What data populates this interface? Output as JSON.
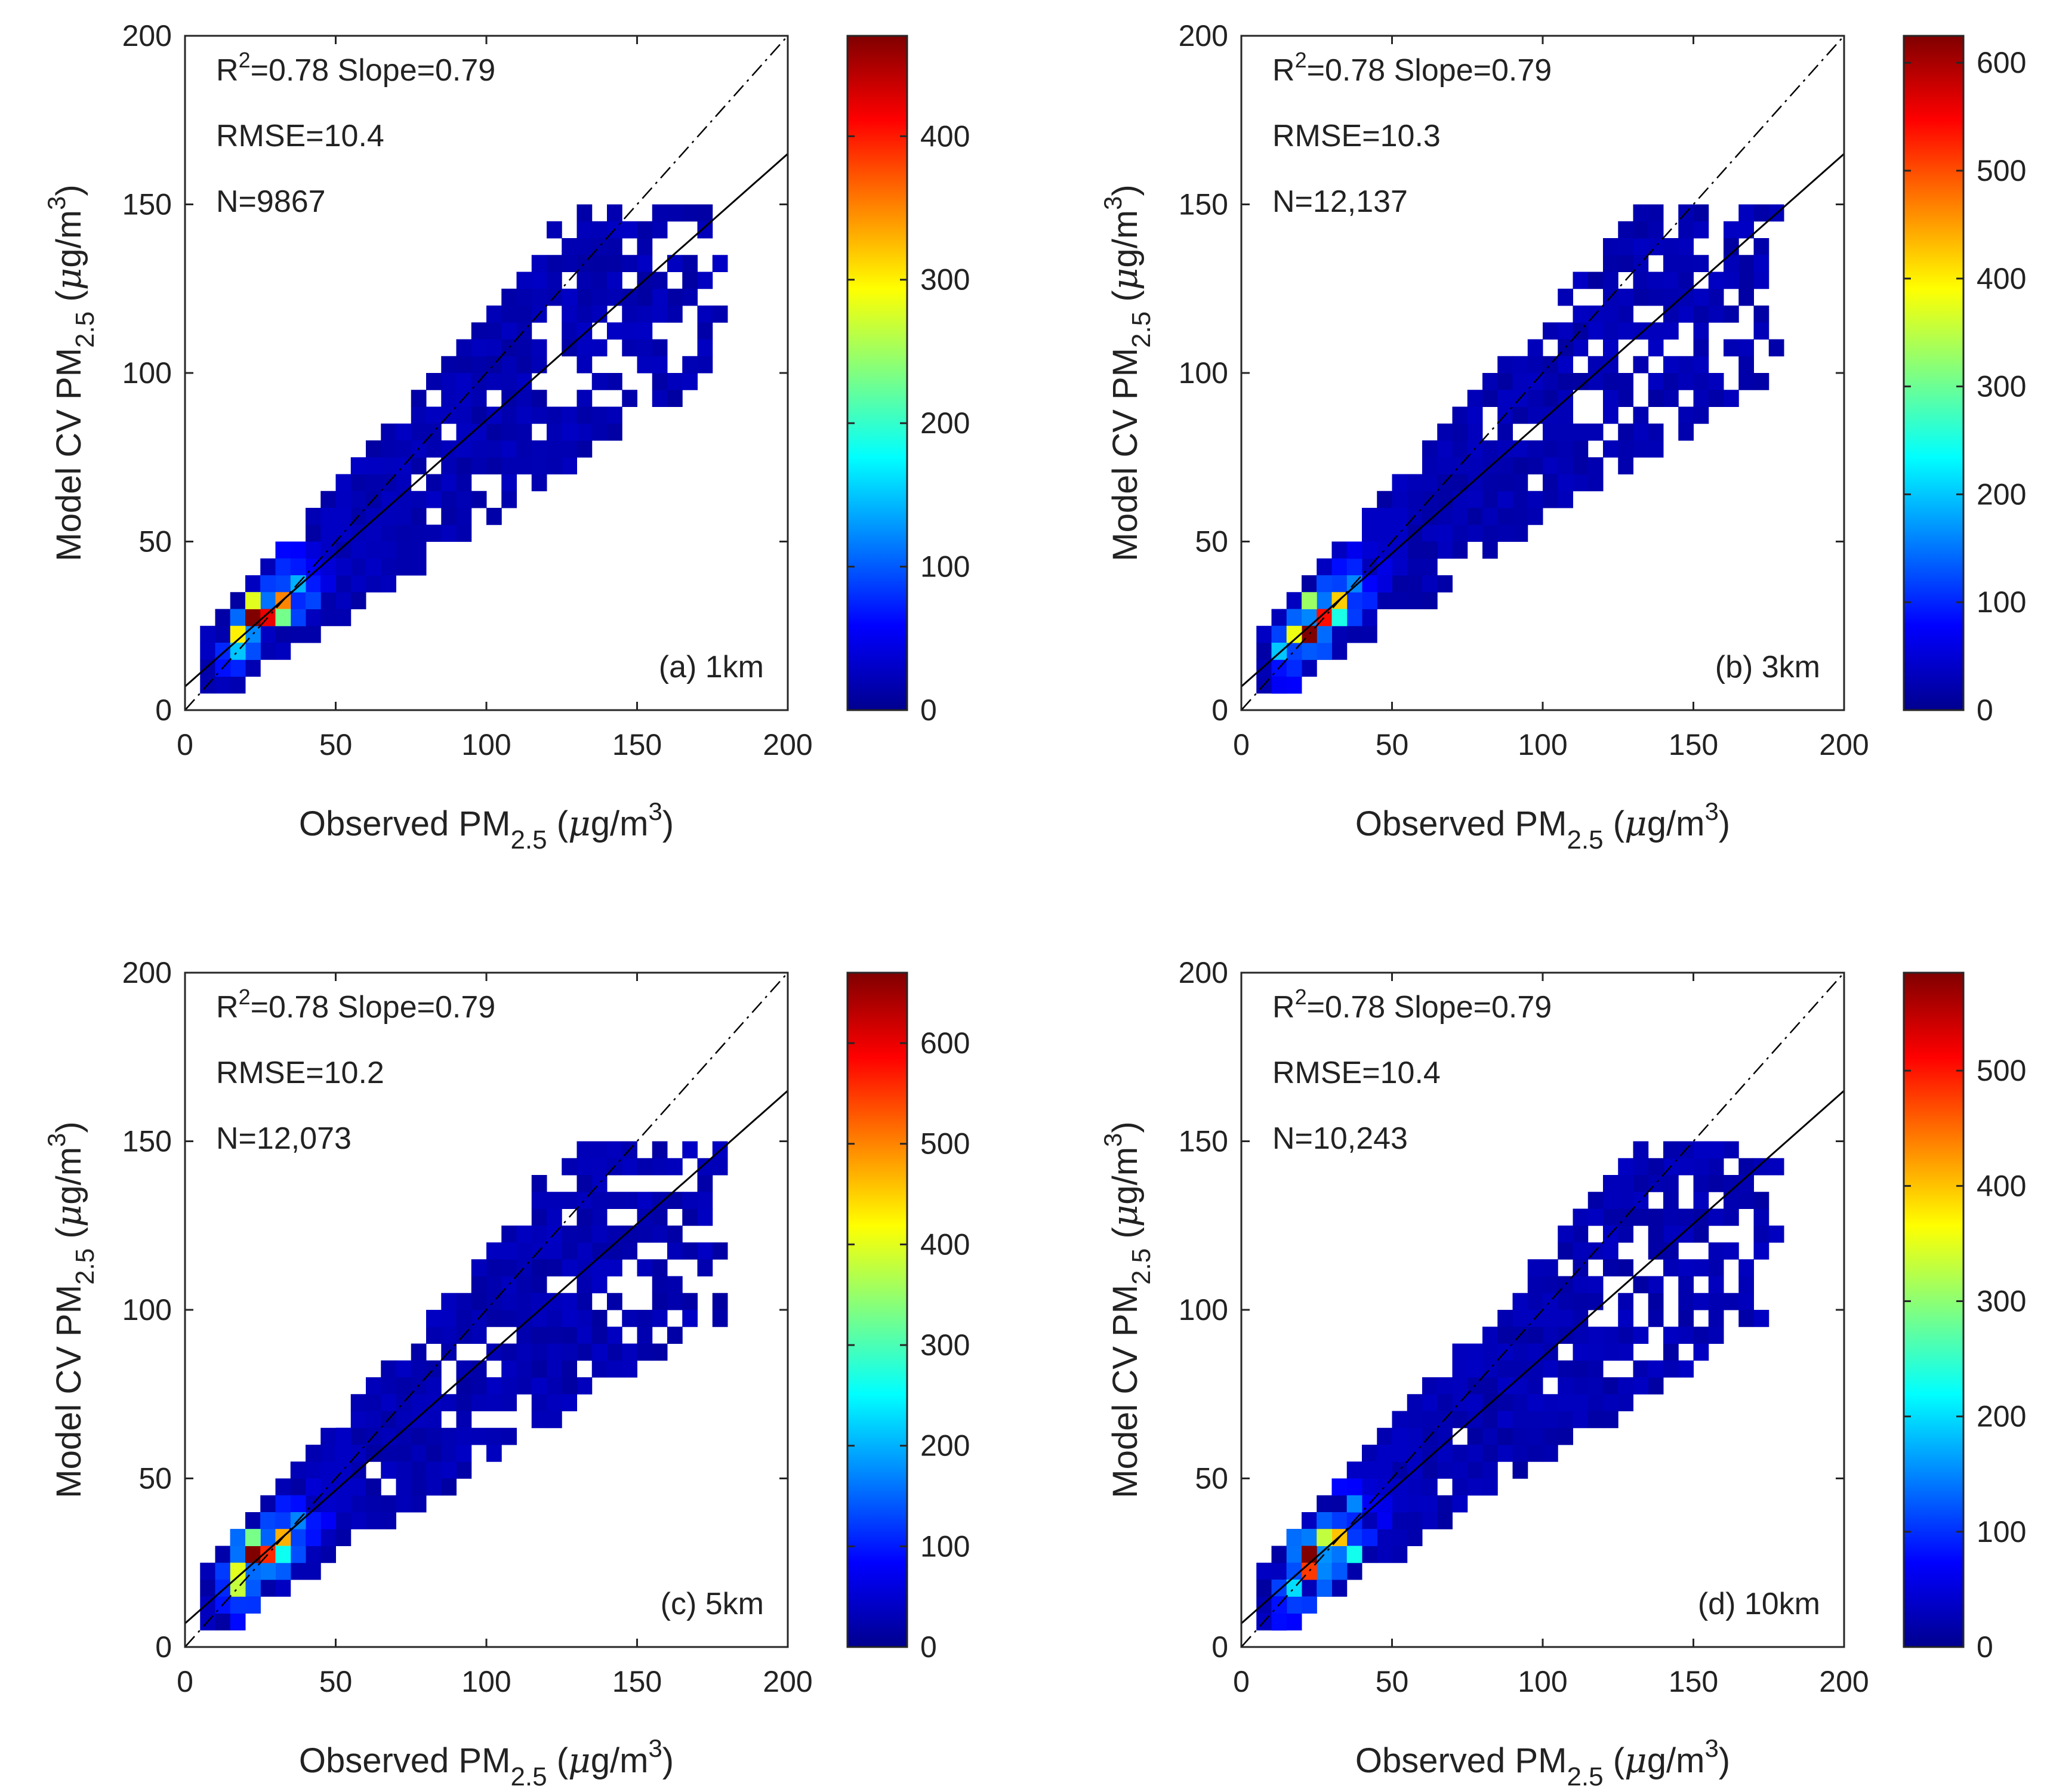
{
  "figure": {
    "x_axis_label": {
      "main": "Observed PM",
      "sub": "2.5",
      "units_open": " (",
      "mu": "μ",
      "units": "g/m",
      "sup": "3",
      "units_close": ")"
    },
    "y_axis_label": {
      "main": "Model CV PM",
      "sub": "2.5",
      "units_open": " (",
      "mu": "μ",
      "units": "g/m",
      "sup": "3",
      "units_close": ")"
    },
    "r2_prefix": "R",
    "r2_sup": "2"
  },
  "colormap": [
    "#00008f",
    "#0000ff",
    "#0080ff",
    "#00ffff",
    "#80ff80",
    "#ffff00",
    "#ff8000",
    "#ff0000",
    "#800000"
  ],
  "chart_data": [
    {
      "type": "heatmap",
      "panel_label": "(a) 1km",
      "r2": "=0.78",
      "slope_text": "Slope=0.79",
      "rmse_text": "RMSE=10.4",
      "n_text": "N=9867",
      "xlim": [
        0,
        200
      ],
      "ylim": [
        0,
        200
      ],
      "x_ticks": [
        "0",
        "50",
        "100",
        "150",
        "200"
      ],
      "y_ticks": [
        "0",
        "50",
        "100",
        "150",
        "200"
      ],
      "colorbar_max": 470,
      "colorbar_ticks": [
        "0",
        "100",
        "200",
        "300",
        "400"
      ],
      "colorbar_tick_values": [
        0,
        100,
        200,
        300,
        400
      ],
      "one_to_one_line": true,
      "fit_line": {
        "slope": 0.79,
        "intercept": 7,
        "x_range": [
          0,
          200
        ]
      },
      "hot_cells": [
        {
          "x": 22,
          "y": 26,
          "value": 470
        },
        {
          "x": 27,
          "y": 28,
          "value": 420
        },
        {
          "x": 30,
          "y": 32,
          "value": 350
        },
        {
          "x": 18,
          "y": 22,
          "value": 300
        },
        {
          "x": 24,
          "y": 32,
          "value": 280
        },
        {
          "x": 33,
          "y": 28,
          "value": 230
        },
        {
          "x": 15,
          "y": 18,
          "value": 150
        },
        {
          "x": 35,
          "y": 38,
          "value": 140
        },
        {
          "x": 40,
          "y": 32,
          "value": 90
        }
      ]
    },
    {
      "type": "heatmap",
      "panel_label": "(b) 3km",
      "r2": "=0.78",
      "slope_text": "Slope=0.79",
      "rmse_text": "RMSE=10.3",
      "n_text": "N=12,137",
      "xlim": [
        0,
        200
      ],
      "ylim": [
        0,
        200
      ],
      "x_ticks": [
        "0",
        "50",
        "100",
        "150",
        "200"
      ],
      "y_ticks": [
        "0",
        "50",
        "100",
        "150",
        "200"
      ],
      "colorbar_max": 625,
      "colorbar_ticks": [
        "0",
        "100",
        "200",
        "300",
        "400",
        "500",
        "600"
      ],
      "colorbar_tick_values": [
        0,
        100,
        200,
        300,
        400,
        500,
        600
      ],
      "one_to_one_line": true,
      "fit_line": {
        "slope": 0.79,
        "intercept": 7,
        "x_range": [
          0,
          200
        ]
      },
      "hot_cells": [
        {
          "x": 20,
          "y": 24,
          "value": 625
        },
        {
          "x": 25,
          "y": 27,
          "value": 540
        },
        {
          "x": 30,
          "y": 32,
          "value": 420
        },
        {
          "x": 17,
          "y": 20,
          "value": 380
        },
        {
          "x": 23,
          "y": 31,
          "value": 330
        },
        {
          "x": 34,
          "y": 28,
          "value": 250
        },
        {
          "x": 14,
          "y": 16,
          "value": 200
        },
        {
          "x": 36,
          "y": 38,
          "value": 160
        }
      ]
    },
    {
      "type": "heatmap",
      "panel_label": "(c) 5km",
      "r2": "=0.78",
      "slope_text": "Slope=0.79",
      "rmse_text": "RMSE=10.2",
      "n_text": "N=12,073",
      "xlim": [
        0,
        200
      ],
      "ylim": [
        0,
        200
      ],
      "x_ticks": [
        "0",
        "50",
        "100",
        "150",
        "200"
      ],
      "y_ticks": [
        "0",
        "50",
        "100",
        "150",
        "200"
      ],
      "colorbar_max": 670,
      "colorbar_ticks": [
        "0",
        "100",
        "200",
        "300",
        "400",
        "500",
        "600"
      ],
      "colorbar_tick_values": [
        0,
        100,
        200,
        300,
        400,
        500,
        600
      ],
      "one_to_one_line": true,
      "fit_line": {
        "slope": 0.79,
        "intercept": 7,
        "x_range": [
          0,
          200
        ]
      },
      "hot_cells": [
        {
          "x": 22,
          "y": 26,
          "value": 670
        },
        {
          "x": 26,
          "y": 28,
          "value": 560
        },
        {
          "x": 30,
          "y": 32,
          "value": 470
        },
        {
          "x": 18,
          "y": 22,
          "value": 400
        },
        {
          "x": 24,
          "y": 34,
          "value": 330
        },
        {
          "x": 34,
          "y": 28,
          "value": 260
        },
        {
          "x": 16,
          "y": 18,
          "value": 380
        },
        {
          "x": 37,
          "y": 38,
          "value": 170
        }
      ]
    },
    {
      "type": "heatmap",
      "panel_label": "(d) 10km",
      "r2": "=0.78",
      "slope_text": "Slope=0.79",
      "rmse_text": "RMSE=10.4",
      "n_text": "N=10,243",
      "xlim": [
        0,
        200
      ],
      "ylim": [
        0,
        200
      ],
      "x_ticks": [
        "0",
        "50",
        "100",
        "150",
        "200"
      ],
      "y_ticks": [
        "0",
        "50",
        "100",
        "150",
        "200"
      ],
      "colorbar_max": 585,
      "colorbar_ticks": [
        "0",
        "100",
        "200",
        "300",
        "400",
        "500"
      ],
      "colorbar_tick_values": [
        0,
        100,
        200,
        300,
        400,
        500
      ],
      "one_to_one_line": true,
      "fit_line": {
        "slope": 0.79,
        "intercept": 7,
        "x_range": [
          0,
          200
        ]
      },
      "hot_cells": [
        {
          "x": 24,
          "y": 26,
          "value": 585
        },
        {
          "x": 28,
          "y": 30,
          "value": 520
        },
        {
          "x": 20,
          "y": 22,
          "value": 480
        },
        {
          "x": 32,
          "y": 34,
          "value": 400
        },
        {
          "x": 26,
          "y": 34,
          "value": 330
        },
        {
          "x": 35,
          "y": 28,
          "value": 230
        },
        {
          "x": 16,
          "y": 18,
          "value": 200
        },
        {
          "x": 38,
          "y": 40,
          "value": 150
        }
      ]
    }
  ]
}
